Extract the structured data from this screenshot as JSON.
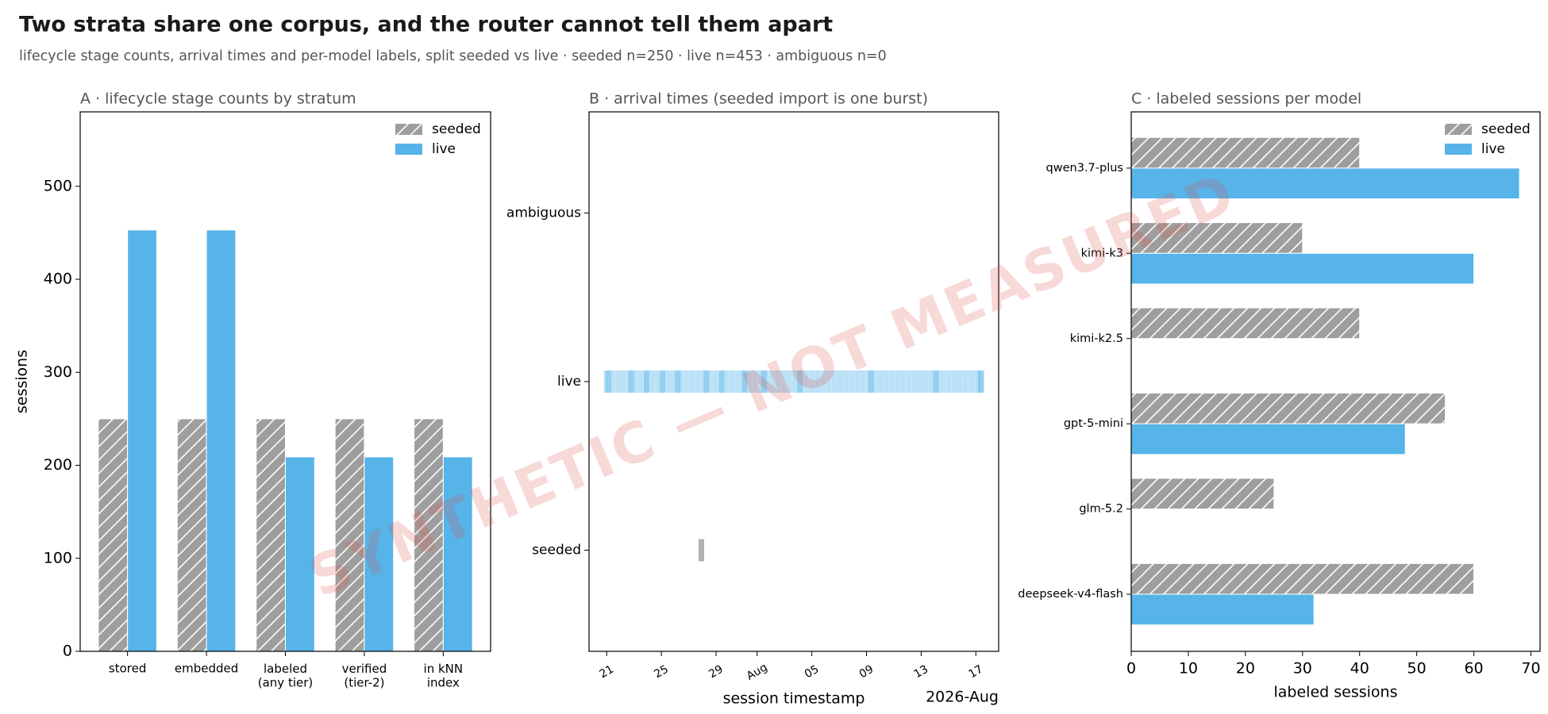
{
  "title": "Two strata share one corpus, and the router cannot tell them apart",
  "subtitle": "lifecycle stage counts, arrival times and per-model labels, split seeded vs live · seeded n=250 · live n=453 · ambiguous n=0",
  "watermark": "SYNTHETIC — NOT MEASURED",
  "chart_data": [
    {
      "type": "bar",
      "title": "A · lifecycle stage counts by stratum",
      "categories": [
        "stored",
        "embedded",
        "labeled\n(any tier)",
        "verified\n(tier-2)",
        "in kNN\nindex"
      ],
      "ylabel": "sessions",
      "ylim": [
        0,
        580
      ],
      "yticks": [
        0,
        100,
        200,
        300,
        400,
        500
      ],
      "legend": "upper right",
      "series": [
        {
          "name": "seeded",
          "color": "#9e9e9e",
          "hatch": "//",
          "values": [
            250,
            250,
            250,
            250,
            250
          ]
        },
        {
          "name": "live",
          "color": "#56b4e9",
          "values": [
            453,
            453,
            209,
            209,
            209
          ]
        }
      ]
    },
    {
      "type": "strip",
      "title": "B · arrival times (seeded import is one burst)",
      "xlabel": "session timestamp",
      "x_offset_label": "2026-Aug",
      "xlim": [
        "2026-07-19T17:00",
        "2026-08-18T16:00"
      ],
      "xticks": [
        {
          "value": "2026-07-21",
          "label": "21"
        },
        {
          "value": "2026-07-25",
          "label": "25"
        },
        {
          "value": "2026-07-29",
          "label": "29"
        },
        {
          "value": "2026-08-01",
          "label": "Aug"
        },
        {
          "value": "2026-08-05",
          "label": "05"
        },
        {
          "value": "2026-08-09",
          "label": "09"
        },
        {
          "value": "2026-08-13",
          "label": "13"
        },
        {
          "value": "2026-08-17",
          "label": "17"
        }
      ],
      "series": [
        {
          "name": "seeded",
          "color": "#9e9e9e",
          "x": [
            "2026-07-27T22:00",
            "2026-07-27T22:05",
            "2026-07-27T22:10"
          ]
        },
        {
          "name": "live",
          "color": "#56b4e9",
          "x": [
            "2026-07-21T00:00",
            "2026-07-21T10:00",
            "2026-07-21T20:00",
            "2026-07-22T06:00",
            "2026-07-22T16:00",
            "2026-07-23T02:00",
            "2026-07-23T12:00",
            "2026-07-23T22:00",
            "2026-07-24T08:00",
            "2026-07-24T18:00",
            "2026-07-25T04:00",
            "2026-07-25T14:00",
            "2026-07-26T00:00",
            "2026-07-26T10:00",
            "2026-07-26T20:00",
            "2026-07-27T06:00",
            "2026-07-27T16:00",
            "2026-07-28T02:00",
            "2026-07-28T12:00",
            "2026-07-28T22:00",
            "2026-07-29T08:00",
            "2026-07-29T18:00",
            "2026-07-30T04:00",
            "2026-07-30T14:00",
            "2026-07-31T00:00",
            "2026-07-31T10:00",
            "2026-07-31T20:00",
            "2026-08-01T06:00",
            "2026-08-01T16:00",
            "2026-08-02T02:00",
            "2026-08-02T12:00",
            "2026-08-02T22:00",
            "2026-08-03T08:00",
            "2026-08-03T18:00",
            "2026-08-04T04:00",
            "2026-08-04T14:00",
            "2026-08-05T00:00",
            "2026-08-05T10:00",
            "2026-08-05T20:00",
            "2026-08-06T06:00",
            "2026-08-06T16:00",
            "2026-08-07T02:00",
            "2026-08-07T12:00",
            "2026-08-07T22:00",
            "2026-08-08T08:00",
            "2026-08-08T18:00",
            "2026-08-09T04:00",
            "2026-08-09T14:00",
            "2026-08-10T00:00",
            "2026-08-10T10:00",
            "2026-08-10T20:00",
            "2026-08-11T06:00",
            "2026-08-11T16:00",
            "2026-08-12T02:00",
            "2026-08-12T12:00",
            "2026-08-12T22:00",
            "2026-08-13T08:00",
            "2026-08-13T18:00",
            "2026-08-14T04:00",
            "2026-08-14T14:00",
            "2026-08-15T00:00",
            "2026-08-15T10:00",
            "2026-08-15T20:00",
            "2026-08-16T06:00",
            "2026-08-16T16:00",
            "2026-08-17T02:00",
            "2026-08-17T10:00",
            "2026-07-21T03:00",
            "2026-07-22T19:00",
            "2026-07-23T22:00",
            "2026-07-25T02:00",
            "2026-07-26T05:00",
            "2026-07-28T07:00",
            "2026-07-29T10:00",
            "2026-07-31T02:00",
            "2026-08-01T12:00",
            "2026-08-04T03:00",
            "2026-08-09T08:00",
            "2026-08-14T02:00",
            "2026-08-17T08:00"
          ]
        },
        {
          "name": "ambiguous",
          "x": []
        }
      ]
    },
    {
      "type": "barh",
      "title": "C · labeled sessions per model",
      "categories": [
        "qwen3.7-plus",
        "kimi-k3",
        "kimi-k2.5",
        "gpt-5-mini",
        "glm-5.2",
        "deepseek-v4-flash"
      ],
      "xlabel": "labeled sessions",
      "xlim": [
        0,
        71.6
      ],
      "xticks": [
        0,
        10,
        20,
        30,
        40,
        50,
        60,
        70
      ],
      "legend": "upper right",
      "series": [
        {
          "name": "seeded",
          "color": "#9e9e9e",
          "hatch": "//",
          "values": [
            40,
            30,
            40,
            55,
            25,
            60
          ]
        },
        {
          "name": "live",
          "color": "#56b4e9",
          "values": [
            68,
            60,
            0,
            48,
            0,
            32
          ]
        }
      ]
    }
  ]
}
